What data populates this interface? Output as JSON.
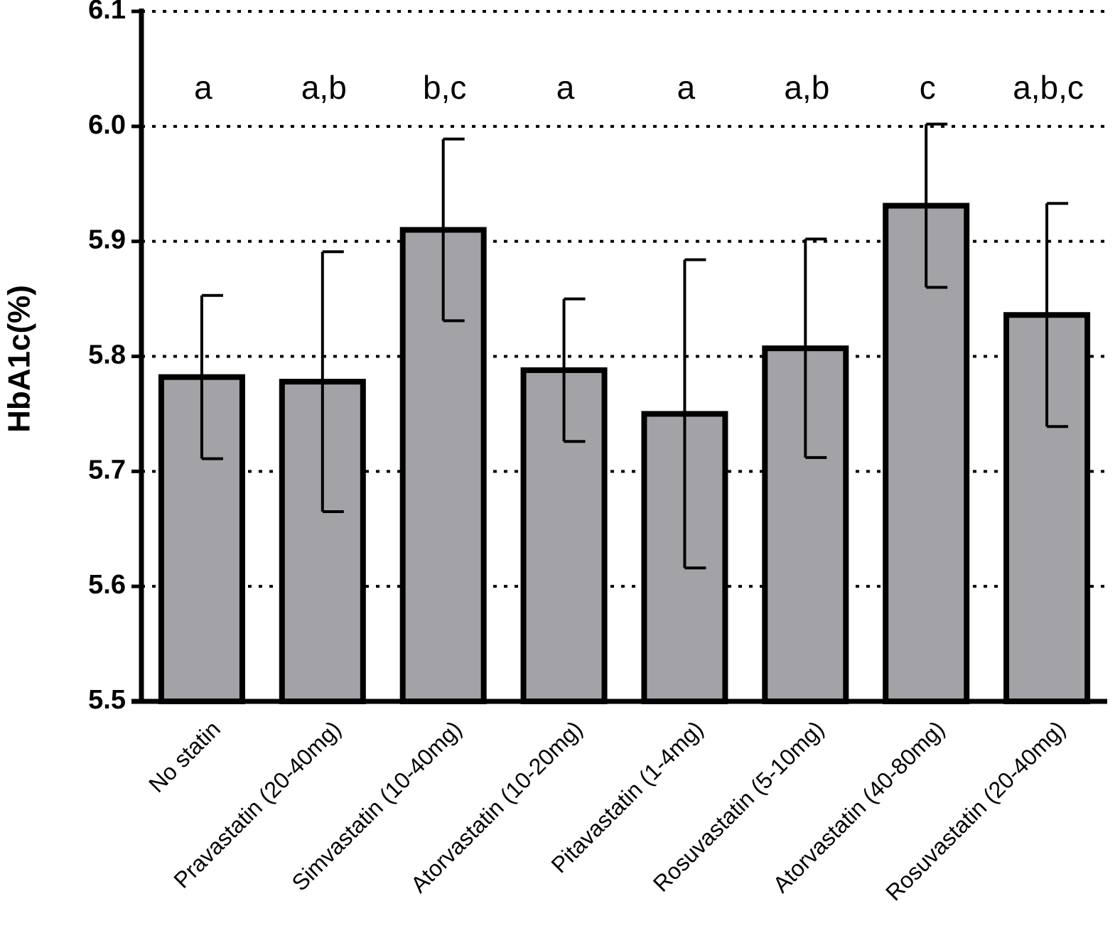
{
  "chart_data": {
    "type": "bar",
    "y_label": "HbA1c(%)",
    "categories": [
      "No statin",
      "Pravastatin (20-40mg)",
      "Simvastatin (10-40mg)",
      "Atorvastatin (10-20mg)",
      "Pitavastatin (1-4mg)",
      "Rosuvastatin (5-10mg)",
      "Atorvastatin (40-80mg)",
      "Rosuvastatin (20-40mg)"
    ],
    "values": [
      5.782,
      5.778,
      5.91,
      5.788,
      5.75,
      5.807,
      5.931,
      5.836
    ],
    "errors": [
      0.071,
      0.113,
      0.079,
      0.062,
      0.134,
      0.095,
      0.071,
      0.097
    ],
    "annotations": [
      "a",
      "a,b",
      "b,c",
      "a",
      "a",
      "a,b",
      "c",
      "a,b,c"
    ],
    "color": "#a3a2a7",
    "ylim": [
      5.5,
      6.1
    ],
    "yticks": [
      5.5,
      5.6,
      5.7,
      5.8,
      5.9,
      {
        "value": 6,
        "label": "6.0"
      },
      6.1
    ],
    "grid": true
  }
}
